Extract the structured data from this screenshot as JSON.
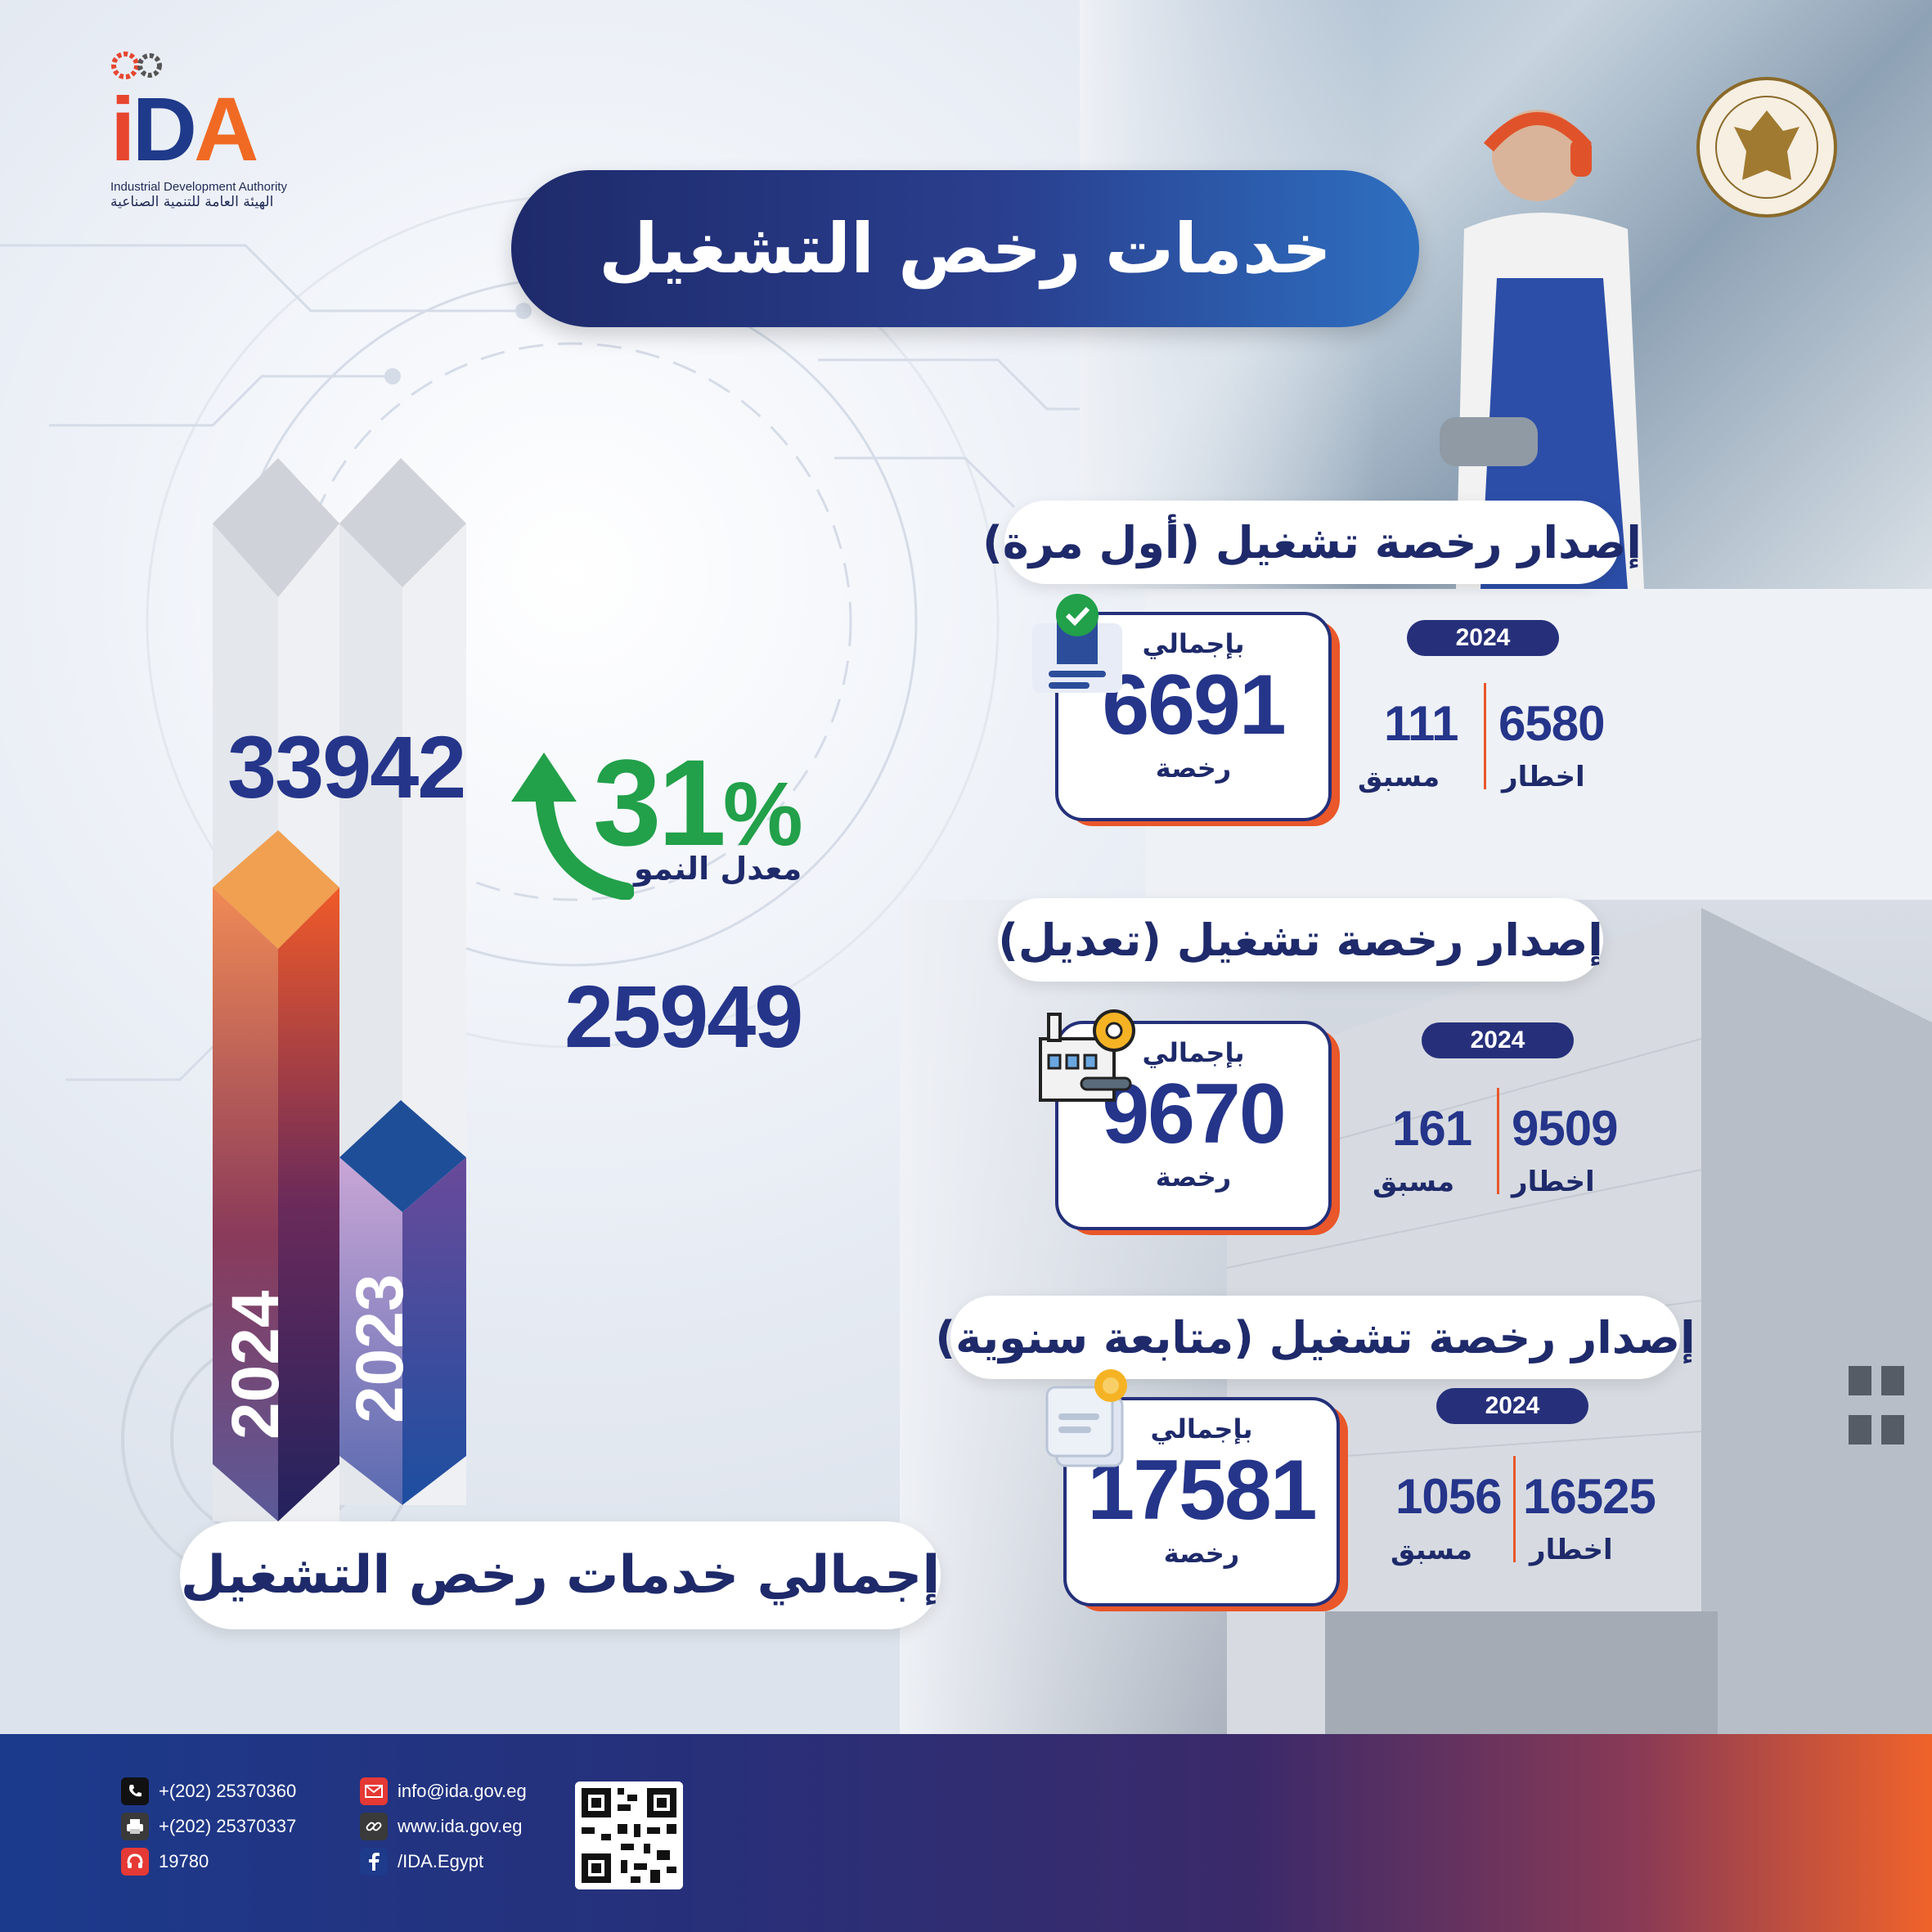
{
  "header": {
    "title": "خدمات رخص التشغيل",
    "logo": {
      "letters": [
        "i",
        "D",
        "A"
      ],
      "en": "Industrial Development Authority",
      "ar": "الهيئة العامة للتنمية الصناعية"
    }
  },
  "chart": {
    "bars": [
      {
        "year": "2024",
        "value": "33942"
      },
      {
        "year": "2023",
        "value": "25949"
      }
    ],
    "growth": {
      "percent": "31",
      "symbol": "%",
      "label": "معدل النمو"
    },
    "total_label": "إجمالي خدمات رخص التشغيل"
  },
  "chart_data": {
    "type": "bar",
    "categories": [
      "2024",
      "2023"
    ],
    "values": [
      33942,
      25949
    ],
    "title": "إجمالي خدمات رخص التشغيل"
  },
  "sections": [
    {
      "title": "إصدار رخصة تشغيل  (أول مرة)",
      "card_top": "بإجمالي",
      "total": "6691",
      "card_bottom": "رخصة",
      "year": "2024",
      "notice_value": "6580",
      "notice_label": "اخطار",
      "prior_value": "111",
      "prior_label": "مسبق",
      "icon": "certificate-badge-icon"
    },
    {
      "title": "إصدار رخصة تشغيل (تعديل)",
      "card_top": "بإجمالي",
      "total": "9670",
      "card_bottom": "رخصة",
      "year": "2024",
      "notice_value": "9509",
      "notice_label": "اخطار",
      "prior_value": "161",
      "prior_label": "مسبق",
      "icon": "factory-gear-icon"
    },
    {
      "title": "إصدار رخصة تشغيل (متابعة سنوية)",
      "card_top": "بإجمالي",
      "total": "17581",
      "card_bottom": "رخصة",
      "year": "2024",
      "notice_value": "16525",
      "notice_label": "اخطار",
      "prior_value": "1056",
      "prior_label": "مسبق",
      "icon": "document-award-icon"
    }
  ],
  "footer": {
    "phone": "+(202) 25370360",
    "fax": "+(202) 25370337",
    "hotline": "19780",
    "email": "info@ida.gov.eg",
    "website": "www.ida.gov.eg",
    "facebook": "/IDA.Egypt"
  },
  "colors": {
    "navy": "#24307a",
    "orange": "#e9572a",
    "green": "#22a04a"
  }
}
